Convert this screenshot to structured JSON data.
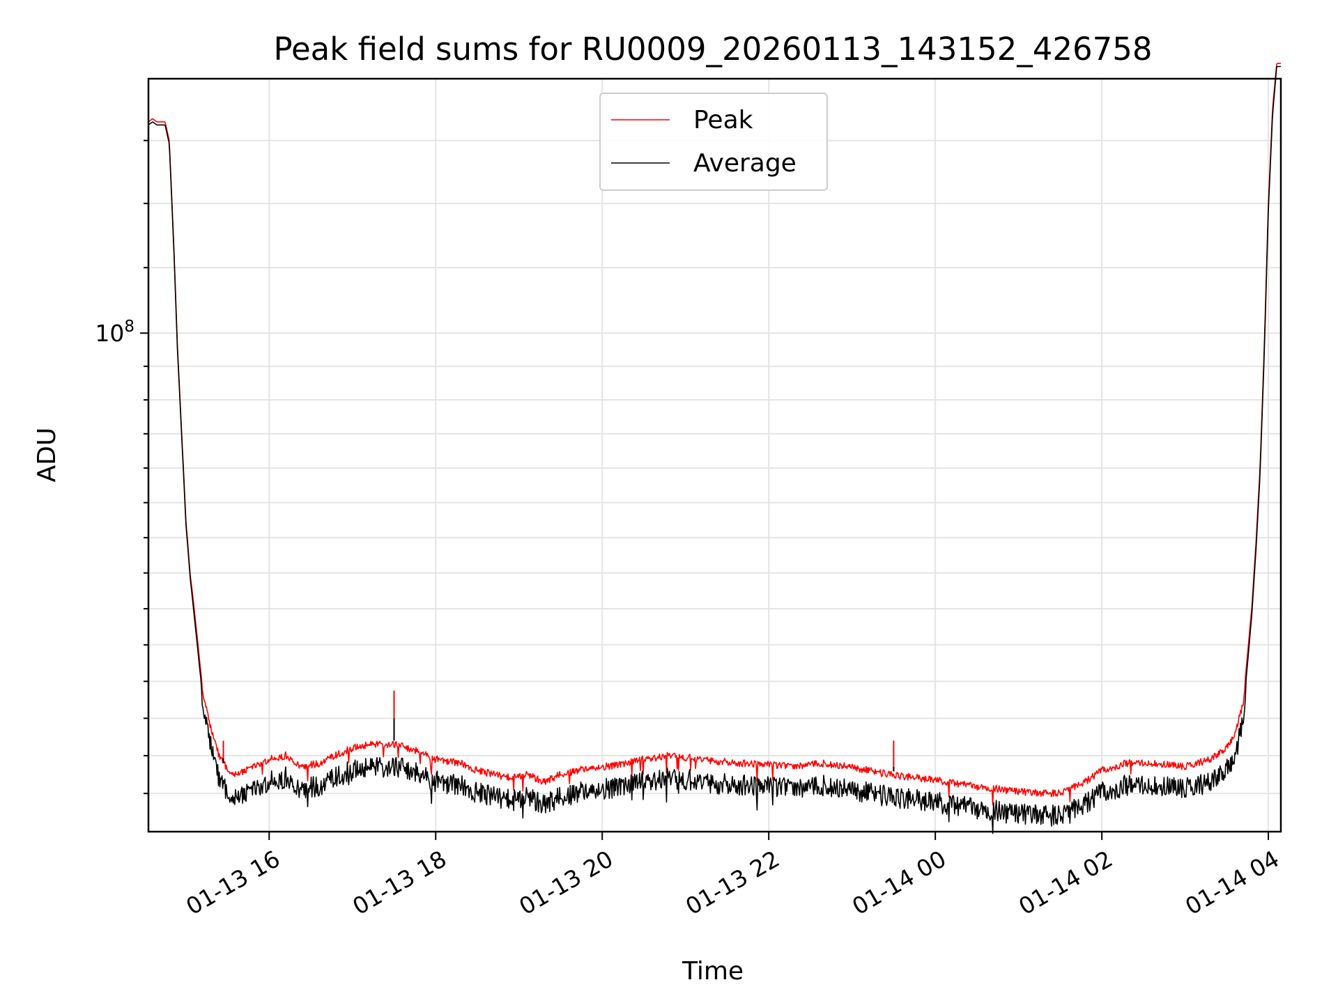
{
  "chart_data": {
    "type": "line",
    "title": "Peak field sums for RU0009_20260113_143152_426758",
    "xlabel": "Time",
    "ylabel": "ADU",
    "yscale": "log",
    "grid": true,
    "legend_position": "top-center",
    "x_unit": "hours since 01-13 00:00",
    "xlim": [
      14.55,
      28.15
    ],
    "ylim": [
      86000000.0,
      108000000.0
    ],
    "xticks": [
      {
        "value": 16,
        "label": "01-13 16"
      },
      {
        "value": 18,
        "label": "01-13 18"
      },
      {
        "value": 20,
        "label": "01-13 20"
      },
      {
        "value": 22,
        "label": "01-13 22"
      },
      {
        "value": 24,
        "label": "01-14 00"
      },
      {
        "value": 26,
        "label": "01-14 02"
      },
      {
        "value": 28,
        "label": "01-14 04"
      }
    ],
    "ytick_major": {
      "value": 100000000.0,
      "base": "10",
      "exp": "8"
    },
    "ytick_minor": [
      87000000.0,
      88000000.0,
      89000000.0,
      90000000.0,
      91000000.0,
      92000000.0,
      93000000.0,
      94000000.0,
      95000000.0,
      96000000.0,
      97000000.0,
      98000000.0,
      99000000.0,
      102000000.0,
      104000000.0,
      106000000.0
    ],
    "series": [
      {
        "name": "Peak",
        "color": "#ff0000",
        "x": [
          14.55,
          14.6,
          14.65,
          14.75,
          14.8,
          14.85,
          14.9,
          15.0,
          15.05,
          15.1,
          15.2,
          15.3,
          15.4,
          15.5,
          15.6,
          15.8,
          16.0,
          16.2,
          16.4,
          16.6,
          16.8,
          17.0,
          17.2,
          17.5,
          17.8,
          18.0,
          18.3,
          18.5,
          18.7,
          18.9,
          19.1,
          19.3,
          19.5,
          19.8,
          20.2,
          20.5,
          20.8,
          21.2,
          21.6,
          22.0,
          22.3,
          22.6,
          23.0,
          23.3,
          23.6,
          24.0,
          24.4,
          24.8,
          25.2,
          25.5,
          25.8,
          26.0,
          26.3,
          26.6,
          27.0,
          27.3,
          27.5,
          27.6,
          27.7,
          27.8,
          27.85,
          27.9,
          27.95,
          28.0,
          28.05,
          28.1
        ],
        "values": [
          106600000.0,
          106700000.0,
          106600000.0,
          106600000.0,
          106000000.0,
          103000000.0,
          99500000.0,
          94500000.0,
          93000000.0,
          92000000.0,
          89800000.0,
          88800000.0,
          88100000.0,
          87750000.0,
          87600000.0,
          87800000.0,
          88000000.0,
          88100000.0,
          87800000.0,
          87900000.0,
          88100000.0,
          88300000.0,
          88400000.0,
          88400000.0,
          88200000.0,
          88000000.0,
          87900000.0,
          87700000.0,
          87600000.0,
          87500000.0,
          87600000.0,
          87400000.0,
          87600000.0,
          87750000.0,
          87850000.0,
          88000000.0,
          88100000.0,
          88000000.0,
          87900000.0,
          87850000.0,
          87800000.0,
          87900000.0,
          87800000.0,
          87650000.0,
          87550000.0,
          87450000.0,
          87300000.0,
          87200000.0,
          87100000.0,
          87100000.0,
          87400000.0,
          87700000.0,
          87900000.0,
          87900000.0,
          87800000.0,
          88000000.0,
          88300000.0,
          88700000.0,
          89500000.0,
          92000000.0,
          93800000.0,
          96000000.0,
          99500000.0,
          104000000.0,
          107000000.0,
          108500000.0
        ]
      },
      {
        "name": "Average",
        "color": "#000000",
        "x": [
          14.55,
          14.6,
          14.65,
          14.75,
          14.8,
          14.85,
          14.9,
          15.0,
          15.05,
          15.1,
          15.2,
          15.3,
          15.4,
          15.5,
          15.6,
          15.8,
          16.0,
          16.2,
          16.4,
          16.6,
          16.8,
          17.0,
          17.2,
          17.5,
          17.8,
          18.0,
          18.3,
          18.5,
          18.7,
          18.9,
          19.1,
          19.3,
          19.5,
          19.8,
          20.2,
          20.5,
          20.8,
          21.2,
          21.6,
          22.0,
          22.3,
          22.6,
          23.0,
          23.3,
          23.6,
          24.0,
          24.4,
          24.8,
          25.2,
          25.5,
          25.8,
          26.0,
          26.3,
          26.6,
          27.0,
          27.3,
          27.5,
          27.6,
          27.7,
          27.8,
          27.85,
          27.9,
          27.95,
          28.0,
          28.05,
          28.1
        ],
        "values": [
          106500000.0,
          106600000.0,
          106500000.0,
          106500000.0,
          105900000.0,
          102900000.0,
          99400000.0,
          94400000.0,
          92900000.0,
          91800000.0,
          89600000.0,
          88500000.0,
          87700000.0,
          87350000.0,
          87200000.0,
          87400000.0,
          87600000.0,
          87700000.0,
          87400000.0,
          87500000.0,
          87700000.0,
          87900000.0,
          88000000.0,
          88000000.0,
          87800000.0,
          87600000.0,
          87500000.0,
          87300000.0,
          87200000.0,
          87100000.0,
          87200000.0,
          87000000.0,
          87200000.0,
          87350000.0,
          87450000.0,
          87600000.0,
          87700000.0,
          87600000.0,
          87500000.0,
          87450000.0,
          87400000.0,
          87500000.0,
          87400000.0,
          87250000.0,
          87150000.0,
          87050000.0,
          86900000.0,
          86800000.0,
          86700000.0,
          86700000.0,
          87000000.0,
          87300000.0,
          87500000.0,
          87500000.0,
          87400000.0,
          87600000.0,
          87900000.0,
          88300000.0,
          89200000.0,
          91800000.0,
          93600000.0,
          95800000.0,
          99300000.0,
          103800000.0,
          106800000.0,
          108400000.0
        ]
      }
    ],
    "annotations": [
      {
        "x": 17.5,
        "peak": 89750000.0,
        "average": 89000000.0,
        "note": "spike"
      },
      {
        "x": 15.45,
        "peak": 88400000.0,
        "average": 87800000.0,
        "note": "spike"
      },
      {
        "x": 23.5,
        "peak": 88400000.0,
        "average": 87700000.0,
        "note": "spike"
      }
    ]
  }
}
